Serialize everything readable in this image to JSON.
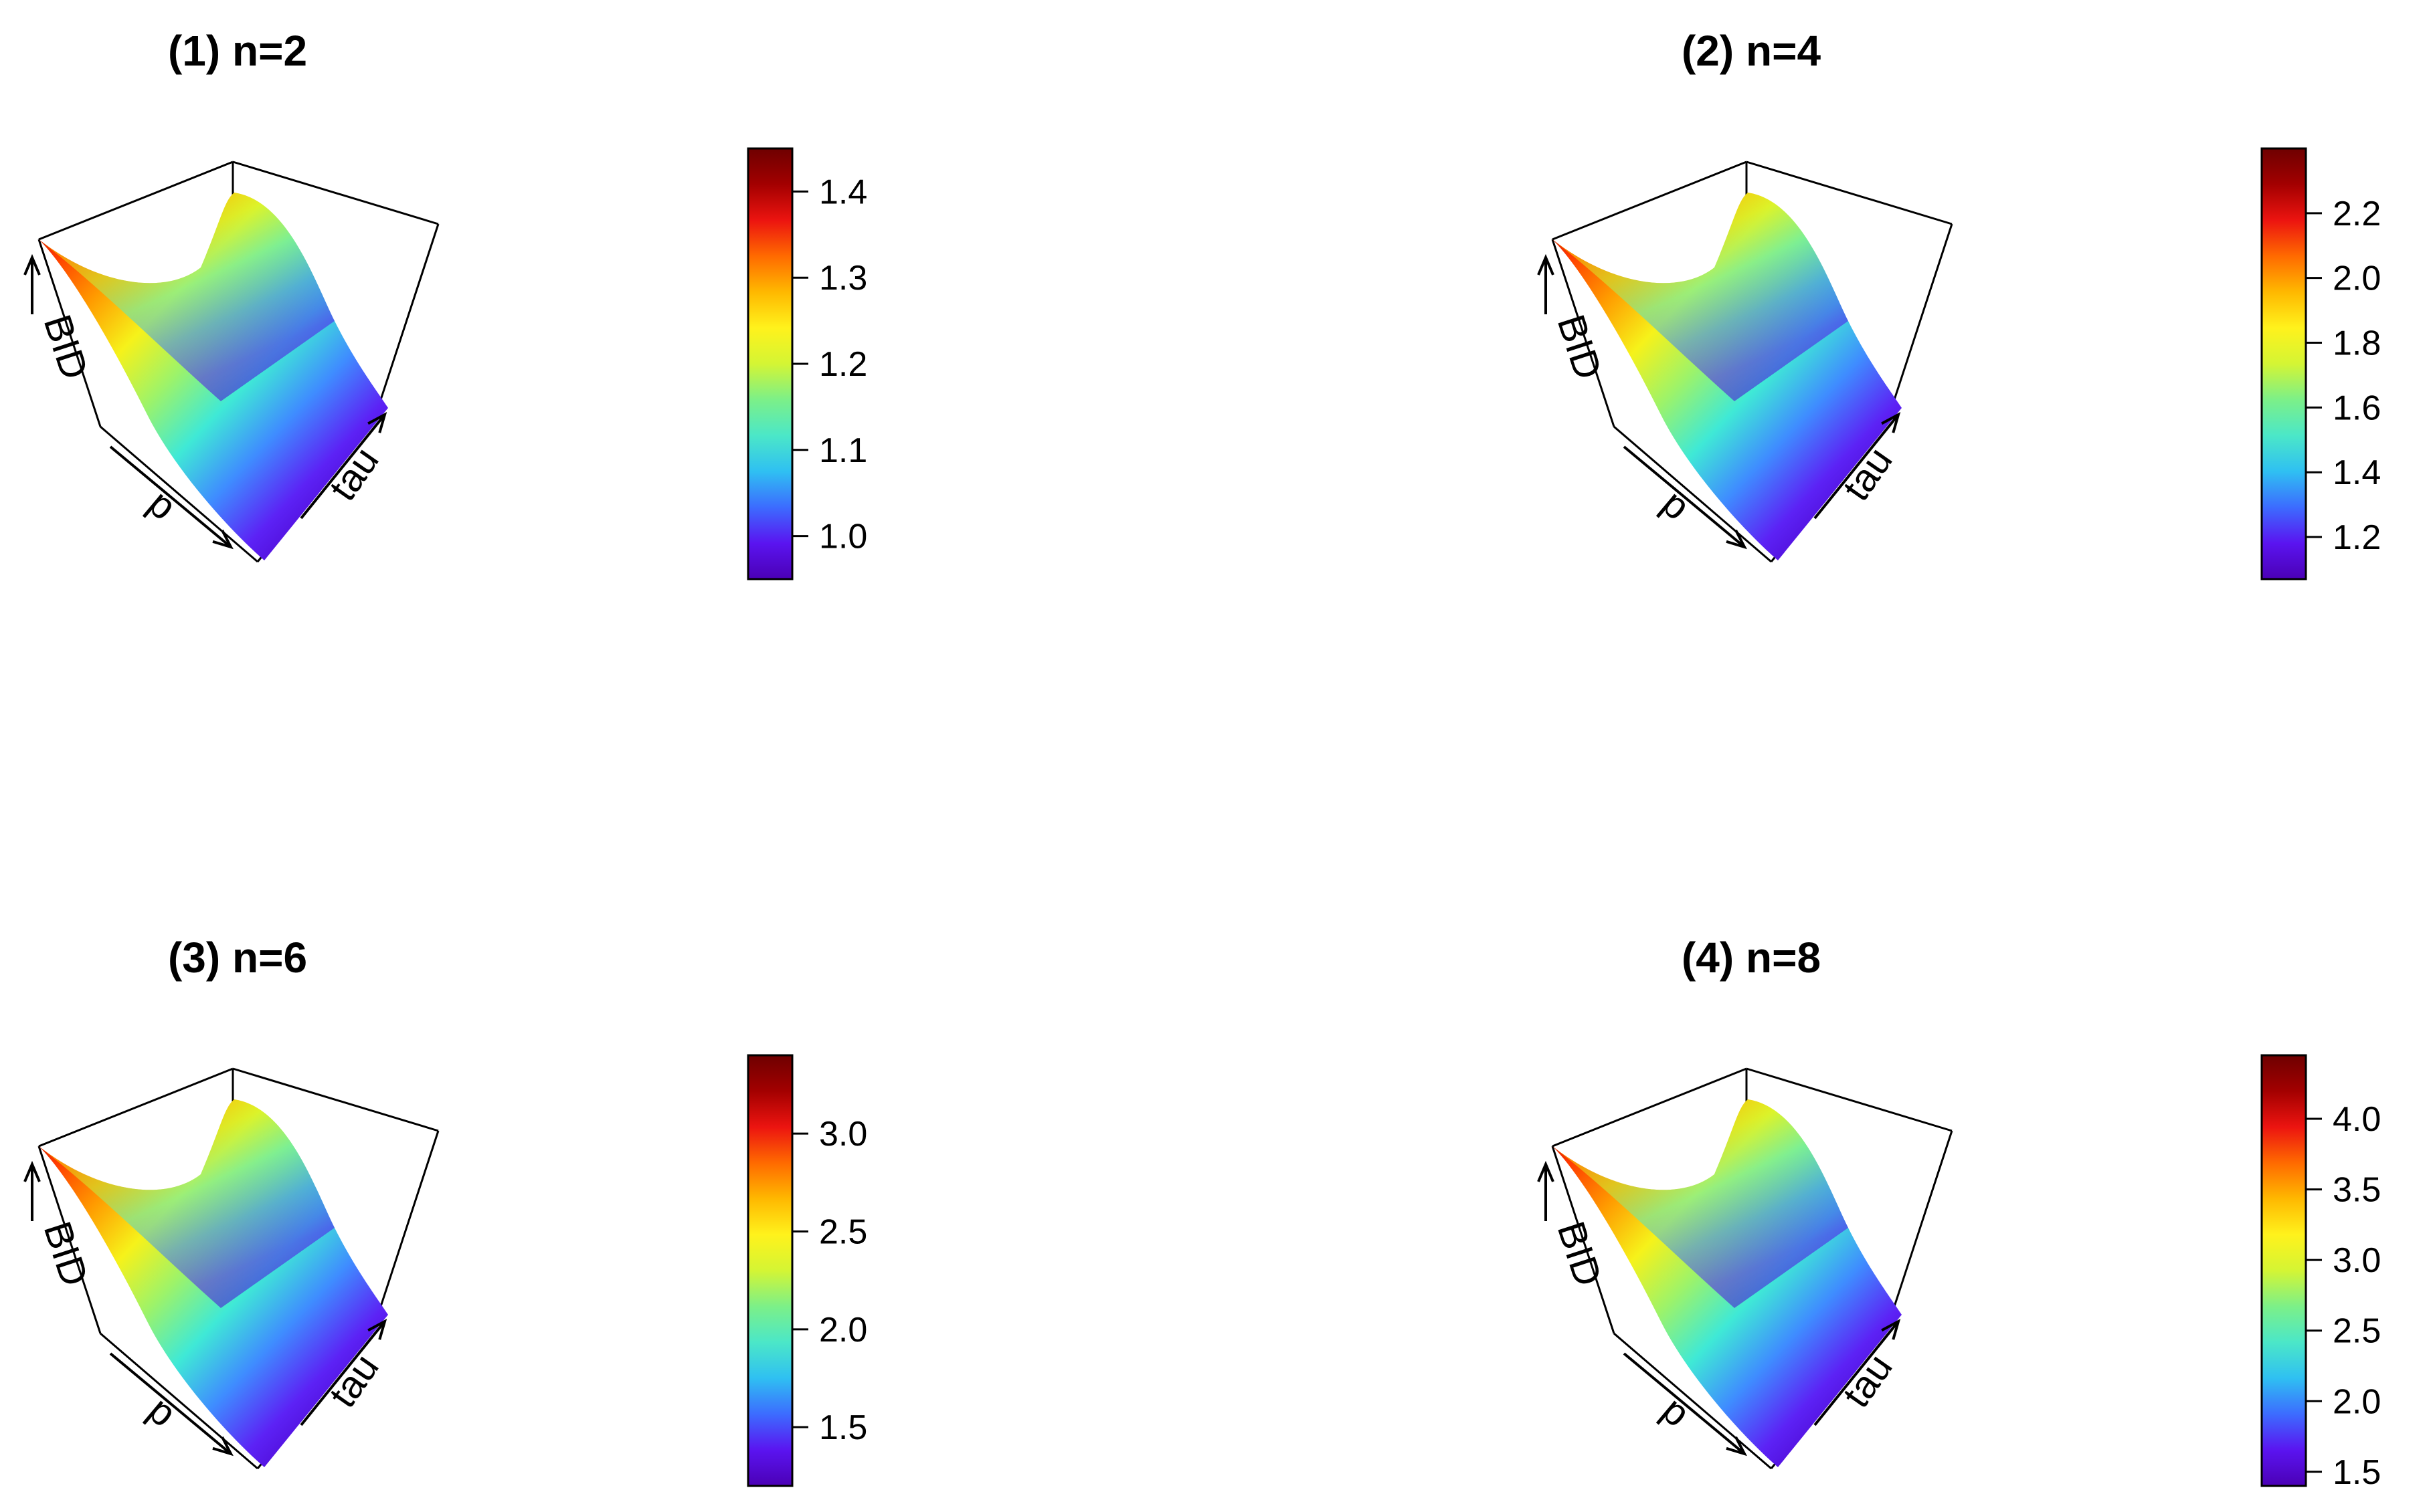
{
  "chart_data": [
    {
      "type": "surface3d",
      "title": "(1) n=2",
      "axis_labels": {
        "x": "p",
        "y": "tau",
        "z": "BID"
      },
      "colorbar": {
        "min": 0.95,
        "max": 1.45,
        "ticks": [
          {
            "value": 1.0,
            "label": "1.0"
          },
          {
            "value": 1.1,
            "label": "1.1"
          },
          {
            "value": 1.2,
            "label": "1.2"
          },
          {
            "value": 1.3,
            "label": "1.3"
          },
          {
            "value": 1.4,
            "label": "1.4"
          }
        ]
      }
    },
    {
      "type": "surface3d",
      "title": "(2) n=4",
      "axis_labels": {
        "x": "p",
        "y": "tau",
        "z": "BID"
      },
      "colorbar": {
        "min": 1.07,
        "max": 2.4,
        "ticks": [
          {
            "value": 1.2,
            "label": "1.2"
          },
          {
            "value": 1.4,
            "label": "1.4"
          },
          {
            "value": 1.6,
            "label": "1.6"
          },
          {
            "value": 1.8,
            "label": "1.8"
          },
          {
            "value": 2.0,
            "label": "2.0"
          },
          {
            "value": 2.2,
            "label": "2.2"
          }
        ]
      }
    },
    {
      "type": "surface3d",
      "title": "(3) n=6",
      "axis_labels": {
        "x": "p",
        "y": "tau",
        "z": "BID"
      },
      "colorbar": {
        "min": 1.2,
        "max": 3.4,
        "ticks": [
          {
            "value": 1.5,
            "label": "1.5"
          },
          {
            "value": 2.0,
            "label": "2.0"
          },
          {
            "value": 2.5,
            "label": "2.5"
          },
          {
            "value": 3.0,
            "label": "3.0"
          }
        ]
      }
    },
    {
      "type": "surface3d",
      "title": "(4) n=8",
      "axis_labels": {
        "x": "p",
        "y": "tau",
        "z": "BID"
      },
      "colorbar": {
        "min": 1.4,
        "max": 4.45,
        "ticks": [
          {
            "value": 1.5,
            "label": "1.5"
          },
          {
            "value": 2.0,
            "label": "2.0"
          },
          {
            "value": 2.5,
            "label": "2.5"
          },
          {
            "value": 3.0,
            "label": "3.0"
          },
          {
            "value": 3.5,
            "label": "3.5"
          },
          {
            "value": 4.0,
            "label": "4.0"
          }
        ]
      }
    }
  ],
  "colors": {
    "colormap": [
      "#4b00b5",
      "#5a14f0",
      "#3c6cff",
      "#2fc0f2",
      "#4be7c8",
      "#7cf088",
      "#d4f534",
      "#fff21c",
      "#ffb800",
      "#ff6a00",
      "#ec1410",
      "#a30000",
      "#6e0000"
    ],
    "axes": "#000000"
  }
}
